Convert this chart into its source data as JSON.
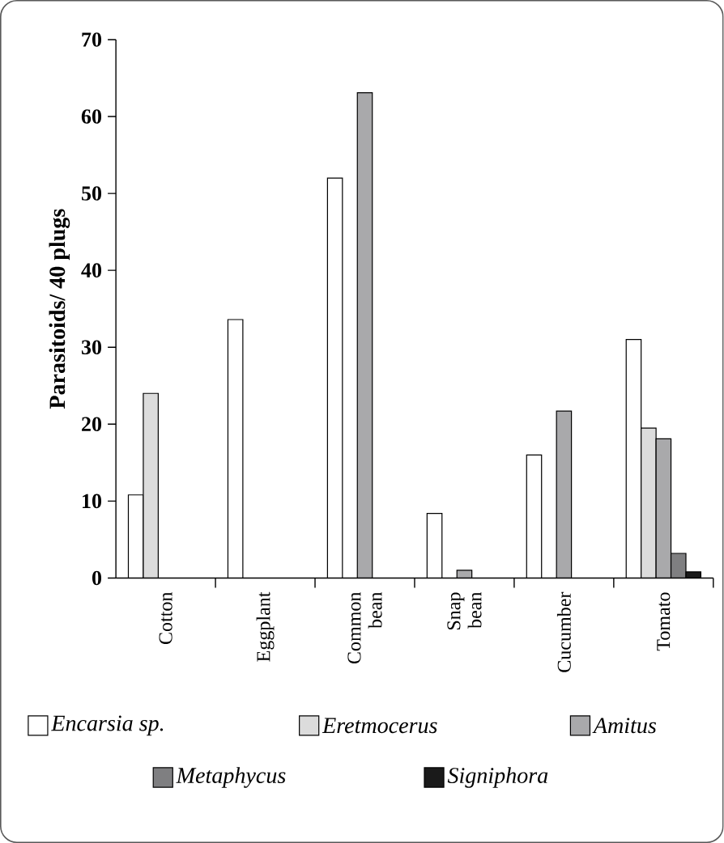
{
  "chart_data": {
    "type": "bar",
    "categories": [
      "Cotton",
      "Eggplant",
      "Common bean",
      "Snap bean",
      "Cucumber",
      "Tomato"
    ],
    "ylabel": "Parasitoids/ 40 plugs",
    "ylim": [
      0,
      70
    ],
    "yticks": [
      0,
      10,
      20,
      30,
      40,
      50,
      60,
      70
    ],
    "legend": "bottom",
    "series": [
      {
        "name": "*Encarsia* sp.",
        "color": "#ffffff",
        "values": [
          10.8,
          33.6,
          52,
          8.4,
          16,
          31
        ]
      },
      {
        "name": "Eretmocerus",
        "color": "#dcdcdc",
        "values": [
          24,
          null,
          null,
          null,
          null,
          19.5
        ]
      },
      {
        "name": "Amitus",
        "color": "#a9a9ab",
        "values": [
          null,
          null,
          63.1,
          1,
          21.7,
          18.1
        ]
      },
      {
        "name": "Metaphycus",
        "color": "#7f7f81",
        "values": [
          null,
          null,
          null,
          null,
          null,
          3.2
        ]
      },
      {
        "name": "Signiphora",
        "color": "#1a1a1a",
        "values": [
          null,
          null,
          null,
          null,
          null,
          0.8
        ]
      }
    ]
  }
}
